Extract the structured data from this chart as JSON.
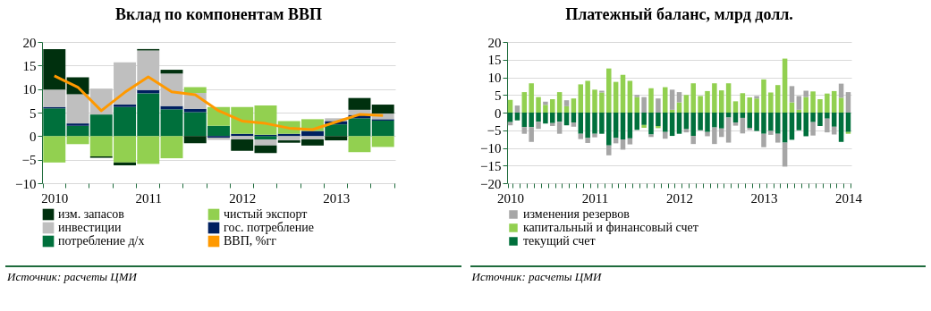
{
  "chart_data": [
    {
      "type": "bar",
      "title": "Вклад по компонентам ВВП",
      "stacked": true,
      "grid": "y",
      "legend": "bottom",
      "categories": [
        "2010",
        null,
        null,
        null,
        "2011",
        null,
        null,
        null,
        "2012",
        null,
        null,
        null,
        "2013",
        null,
        null
      ],
      "ylim": [
        -10,
        20
      ],
      "yticks": [
        -10,
        -5,
        0,
        5,
        10,
        15,
        20
      ],
      "series": [
        {
          "name": "потребление д/х",
          "color": "#00703c",
          "values": [
            5.9,
            2.2,
            4.6,
            6.2,
            9.1,
            5.7,
            5.1,
            2.2,
            0,
            -0.7,
            0,
            0,
            2.5,
            3.8,
            3.3
          ]
        },
        {
          "name": "гос. потребление",
          "color": "#002060",
          "values": [
            0.3,
            0.5,
            0,
            0.5,
            0.7,
            0.7,
            0.7,
            -0.3,
            0.5,
            0.3,
            0.5,
            1.1,
            0.7,
            0.7,
            0.3
          ]
        },
        {
          "name": "инвестиции",
          "color": "#bfbfbf",
          "values": [
            3.7,
            6.2,
            5.5,
            9.0,
            8.4,
            6.9,
            3.4,
            -0.5,
            -0.7,
            -1.3,
            -0.9,
            -0.7,
            0.6,
            1.1,
            1.2
          ]
        },
        {
          "name": "чистый экспорт",
          "color": "#92d050",
          "values": [
            -5.6,
            -1.7,
            -4.3,
            -5.6,
            -5.9,
            -4.7,
            1.2,
            4.0,
            5.7,
            6.2,
            2.7,
            2.5,
            0,
            -3.4,
            -2.3
          ]
        },
        {
          "name": "изм. запасов",
          "color": "#00300e",
          "values": [
            8.6,
            3.6,
            -0.3,
            -0.6,
            0.3,
            0.8,
            -1.5,
            0,
            -2.4,
            -1.6,
            -0.5,
            -1.3,
            -0.9,
            2.5,
            1.9
          ]
        },
        {
          "name": "ВВП, %гг",
          "type": "line",
          "color": "#ff9900",
          "values": [
            12.8,
            10.4,
            5.4,
            9.3,
            12.6,
            9.4,
            8.8,
            5.4,
            3.2,
            2.7,
            1.7,
            1.4,
            3.0,
            4.6,
            4.4
          ]
        }
      ],
      "annotations": [
        "Источник: расчеты ЦМИ"
      ]
    },
    {
      "type": "bar",
      "title": "Платежный баланс, млрд долл.",
      "stacked": true,
      "grid": "y",
      "legend": "bottom",
      "categories": [
        "2010",
        null,
        null,
        null,
        null,
        null,
        null,
        null,
        null,
        null,
        null,
        null,
        "2011",
        null,
        null,
        null,
        null,
        null,
        null,
        null,
        null,
        null,
        null,
        null,
        "2012",
        null,
        null,
        null,
        null,
        null,
        null,
        null,
        null,
        null,
        null,
        null,
        "2013",
        null,
        null,
        null,
        null,
        null,
        null,
        null,
        null,
        null,
        null,
        null,
        "2014"
      ],
      "ylim": [
        -20,
        20
      ],
      "yticks": [
        -20,
        -15,
        -10,
        -5,
        0,
        5,
        10,
        15,
        20
      ],
      "series": [
        {
          "name": "текущий счет",
          "color": "#00703c",
          "values": [
            -2.7,
            -2.2,
            -4.1,
            -4.1,
            -2.6,
            -3.1,
            -3.0,
            -2.6,
            -3.6,
            -2.8,
            -6.0,
            -7.2,
            -6.0,
            -6.0,
            -9.3,
            -7.2,
            -7.6,
            -7.3,
            -4.9,
            -3.5,
            -6.2,
            -3.8,
            -5.5,
            -6.6,
            -6.0,
            -4.7,
            -6.6,
            -5.0,
            -5.5,
            -4.2,
            -4.5,
            -1.4,
            -2.8,
            -1.5,
            -4.3,
            -5.2,
            -6.0,
            -5.2,
            -6.0,
            -8.5,
            -7.7,
            -5.0,
            -6.7,
            -2.7,
            -3.8,
            -1.7,
            -4.0,
            -8.3,
            -5.5
          ]
        },
        {
          "name": "капитальный и финансовый счет",
          "color": "#92d050",
          "values": [
            3.6,
            0,
            5.8,
            8.3,
            4.4,
            2.2,
            3.8,
            5.8,
            1.8,
            4.0,
            8.0,
            9.0,
            6.5,
            5.7,
            12.5,
            8.7,
            10.7,
            9.0,
            4.4,
            -0.8,
            6.9,
            -0.6,
            7.2,
            0.8,
            2.9,
            5.0,
            8.3,
            4.7,
            6.1,
            8.3,
            6.3,
            8.3,
            3.2,
            5.5,
            4.3,
            4.0,
            9.4,
            5.7,
            7.8,
            15.3,
            2.9,
            0.8,
            4.4,
            6.0,
            3.8,
            5.4,
            6.1,
            4.2,
            -0.5
          ]
        },
        {
          "name": "изменения резервов",
          "color": "#a6a6a6",
          "values": [
            -0.9,
            2.0,
            -1.9,
            -4.2,
            -2.0,
            0.9,
            -0.8,
            -3.4,
            1.7,
            -1.2,
            -1.5,
            -1.4,
            -1.0,
            0.5,
            -2.8,
            -1.5,
            -2.9,
            -1.7,
            0.6,
            4.4,
            -0.7,
            4.0,
            -1.9,
            5.7,
            2.9,
            -0.9,
            -2.3,
            0,
            -1.2,
            -4.7,
            -2.4,
            -7.1,
            -0.9,
            -4.4,
            -0.6,
            0.7,
            -3.8,
            -1.1,
            -2.5,
            -6.8,
            4.6,
            3.9,
            1.8,
            -3.8,
            0,
            -3.9,
            -2.2,
            4.0,
            5.8
          ]
        }
      ],
      "annotations": [
        "Источник: расчеты ЦМИ"
      ]
    }
  ]
}
